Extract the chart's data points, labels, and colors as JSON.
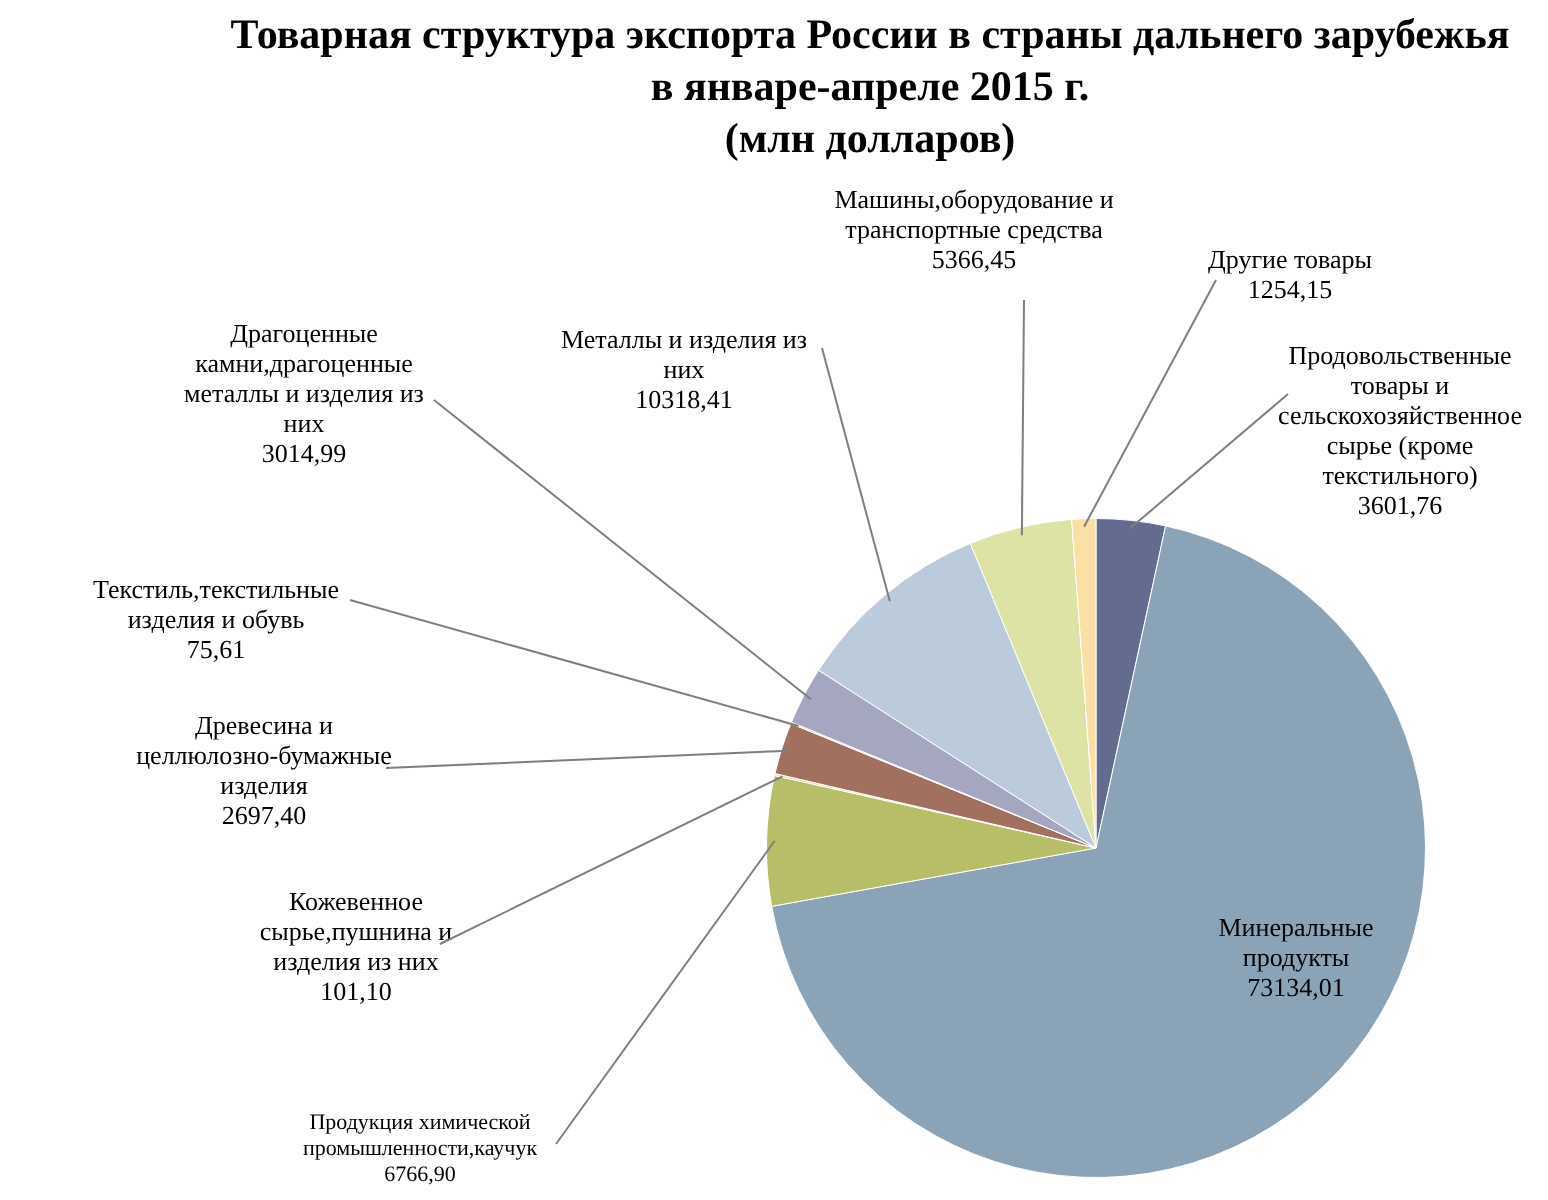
{
  "chart_data": {
    "type": "pie",
    "title": "Товарная структура экспорта России в страны дальнего зарубежья\nв январе-апреле 2015 г.",
    "subtitle": "(млн долларов)",
    "categories": [
      "Продовольственные товары и сельскохозяйственное сырье (кроме текстильного)",
      "Минеральные продукты",
      "Продукция химической промышленности,каучук",
      "Кожевенное сырье,пушнина и изделия из них",
      "Древесина и целлюлозно-бумажные изделия",
      "Текстиль,текстильные изделия и обувь",
      "Драгоценные камни,драгоценные металлы и изделия из них",
      "Металлы и изделия из них",
      "Машины,оборудование и транспортные средства",
      "Другие товары"
    ],
    "values": [
      3601.76,
      73134.01,
      6766.9,
      101.1,
      2697.4,
      75.61,
      3014.99,
      10318.41,
      5366.45,
      1254.15
    ],
    "value_labels": [
      "3601,76",
      "73134,01",
      "6766,90",
      "101,10",
      "2697,40",
      "75,61",
      "3014,99",
      "10318,41",
      "5366,45",
      "1254,15"
    ],
    "colors": [
      "#636b8e",
      "#8ba3b7",
      "#b8bd67",
      "#e6d58f",
      "#a2705f",
      "#c6cbb2",
      "#a4a7bf",
      "#bccbdb",
      "#dde2a5",
      "#fbe0a6"
    ],
    "legend": false
  }
}
